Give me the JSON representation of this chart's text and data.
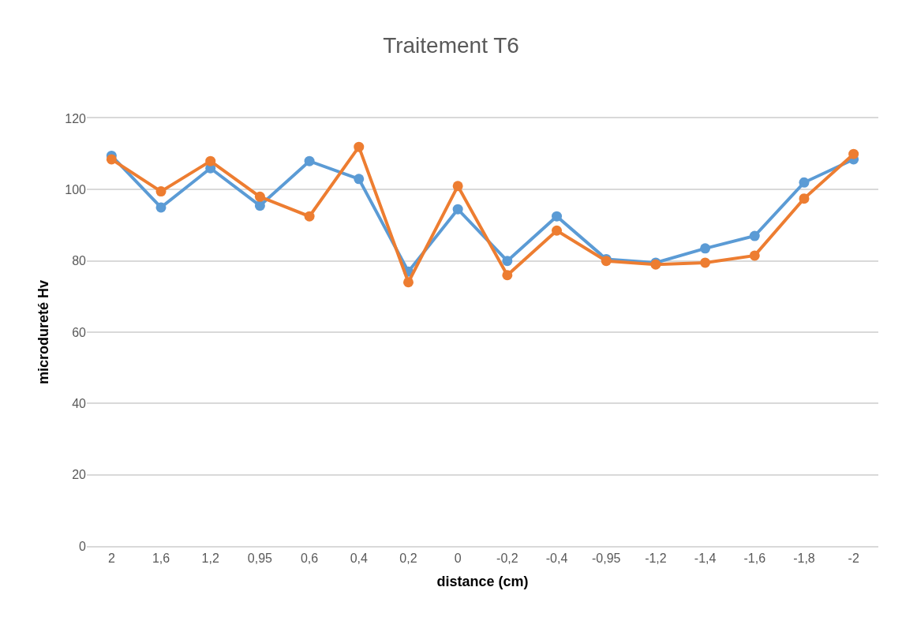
{
  "chart_data": {
    "type": "line",
    "title": "Traitement T6",
    "xlabel": "distance (cm)",
    "ylabel": "microdureté Hv",
    "categories": [
      "2",
      "1,6",
      "1,2",
      "0,95",
      "0,6",
      "0,4",
      "0,2",
      "0",
      "-0,2",
      "-0,4",
      "-0,95",
      "-1,2",
      "-1,4",
      "-1,6",
      "-1,8",
      "-2"
    ],
    "series": [
      {
        "color": "#5b9bd5",
        "values": [
          109.5,
          95,
          106,
          95.5,
          108,
          103,
          77,
          94.5,
          80,
          92.5,
          80.5,
          79.5,
          83.5,
          87,
          102,
          108.5
        ]
      },
      {
        "color": "#ed7d31",
        "values": [
          108.5,
          99.5,
          108,
          98,
          92.5,
          112,
          74,
          101,
          76,
          88.5,
          80,
          79,
          79.5,
          81.5,
          97.5,
          110
        ]
      }
    ],
    "ylim": [
      0,
      120
    ],
    "yticks": [
      0,
      20,
      40,
      60,
      80,
      100,
      120
    ],
    "grid": "y",
    "marker": "circle",
    "line_style": "solid"
  }
}
